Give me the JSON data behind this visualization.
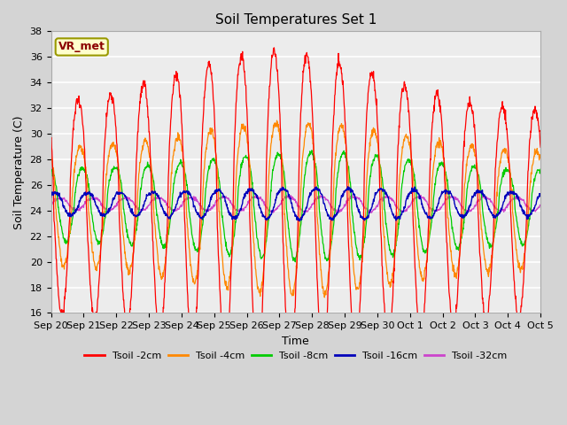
{
  "title": "Soil Temperatures Set 1",
  "xlabel": "Time",
  "ylabel": "Soil Temperature (C)",
  "ylim": [
    16,
    38
  ],
  "yticks": [
    16,
    18,
    20,
    22,
    24,
    26,
    28,
    30,
    32,
    34,
    36,
    38
  ],
  "legend_labels": [
    "Tsoil -2cm",
    "Tsoil -4cm",
    "Tsoil -8cm",
    "Tsoil -16cm",
    "Tsoil -32cm"
  ],
  "legend_colors": [
    "#ff0000",
    "#ff8800",
    "#00cc00",
    "#0000bb",
    "#cc44cc"
  ],
  "annotation_text": "VR_met",
  "annotation_fg": "#8B0000",
  "annotation_bg": "#ffffcc",
  "annotation_edge": "#999900",
  "fig_bg": "#d4d4d4",
  "plot_bg": "#ececec",
  "grid_color": "#ffffff",
  "num_days": 15,
  "xtick_labels": [
    "Sep 20",
    "Sep 21",
    "Sep 22",
    "Sep 23",
    "Sep 24",
    "Sep 25",
    "Sep 26",
    "Sep 27",
    "Sep 28",
    "Sep 29",
    "Sep 30",
    "Oct 1",
    "Oct 2",
    "Oct 3",
    "Oct 4",
    "Oct 5"
  ],
  "title_fontsize": 11,
  "axis_label_fontsize": 9,
  "tick_fontsize": 8,
  "legend_fontsize": 8
}
